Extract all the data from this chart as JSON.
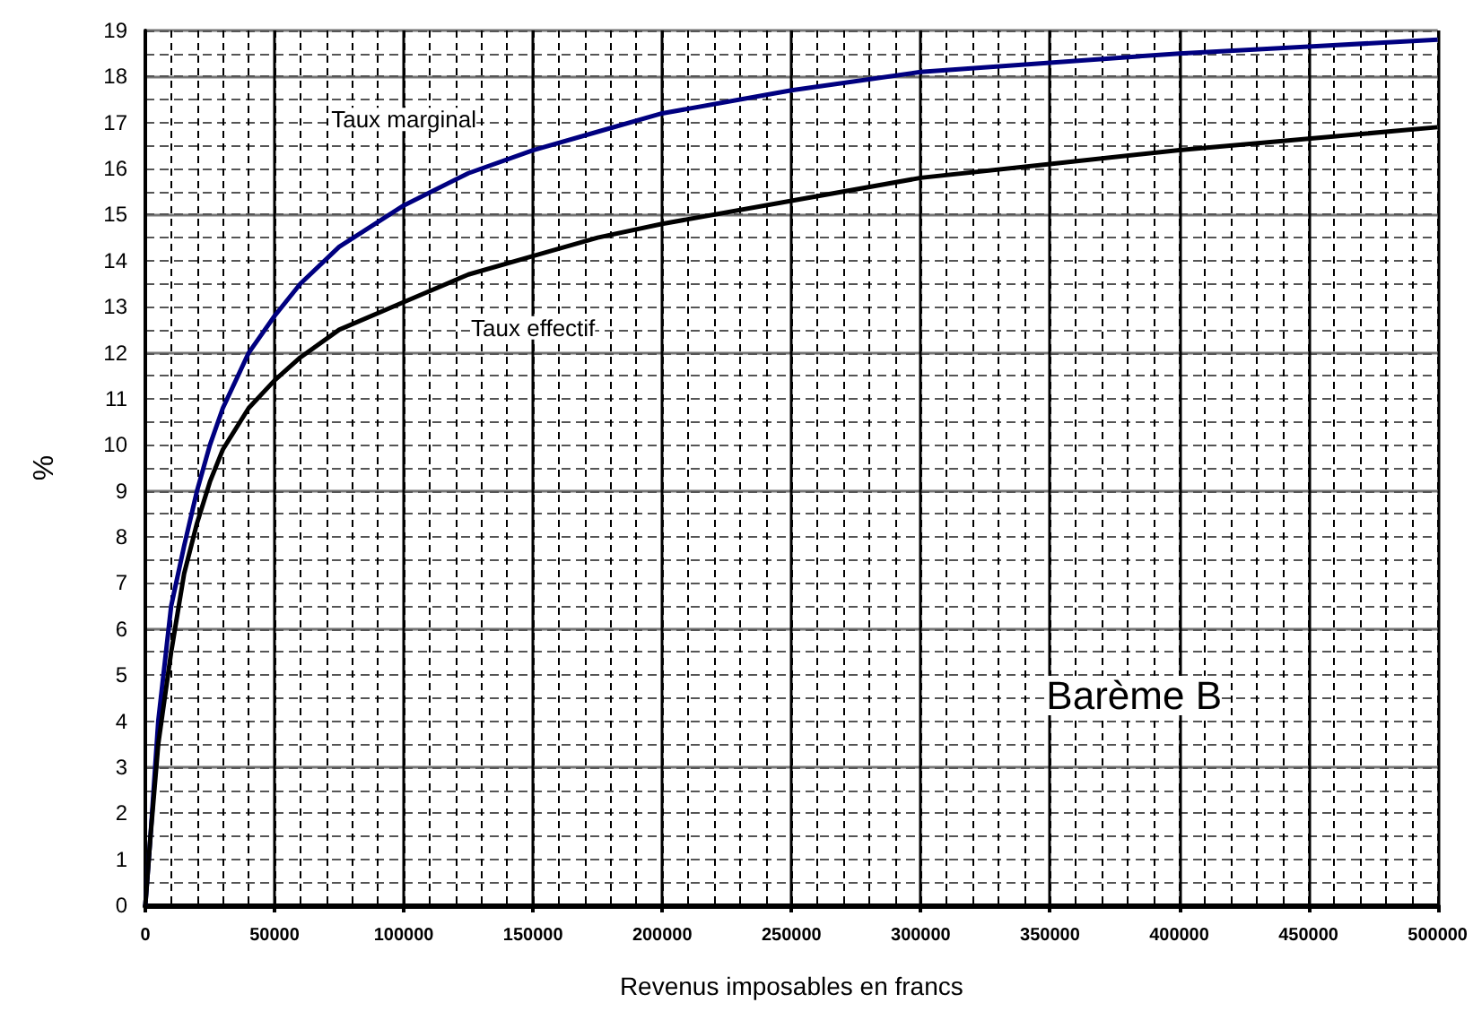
{
  "chart_data": {
    "type": "line",
    "xlabel": "Revenus imposables en francs",
    "ylabel": "%",
    "xlim": [
      0,
      500000
    ],
    "xticks": [
      0,
      50000,
      100000,
      150000,
      200000,
      250000,
      300000,
      350000,
      400000,
      450000,
      500000
    ],
    "ylim": [
      0,
      19
    ],
    "yticks": [
      0,
      1,
      2,
      3,
      4,
      5,
      6,
      7,
      8,
      9,
      10,
      11,
      12,
      13,
      14,
      15,
      16,
      17,
      18,
      19
    ],
    "grid": true,
    "legend": false,
    "marker": "none",
    "line_style": "solid",
    "annotations": [
      "Barème B"
    ],
    "series": [
      {
        "name": "Taux marginal",
        "color": "#000080",
        "x": [
          0,
          2000,
          5000,
          10000,
          15000,
          20000,
          25000,
          30000,
          40000,
          50000,
          60000,
          75000,
          100000,
          125000,
          150000,
          175000,
          200000,
          250000,
          300000,
          350000,
          400000,
          450000,
          500000
        ],
        "values": [
          0,
          1.5,
          4,
          6.5,
          7.8,
          9,
          10,
          10.8,
          12,
          12.8,
          13.5,
          14.3,
          15.2,
          15.9,
          16.4,
          16.8,
          17.2,
          17.7,
          18.1,
          18.3,
          18.5,
          18.65,
          18.8
        ]
      },
      {
        "name": "Taux effectif",
        "color": "#000000",
        "x": [
          0,
          2000,
          5000,
          10000,
          15000,
          20000,
          25000,
          30000,
          40000,
          50000,
          60000,
          75000,
          100000,
          125000,
          150000,
          175000,
          200000,
          250000,
          300000,
          350000,
          400000,
          450000,
          500000
        ],
        "values": [
          0,
          1.5,
          3.5,
          5.5,
          7.2,
          8.3,
          9.2,
          9.9,
          10.8,
          11.4,
          11.9,
          12.5,
          13.1,
          13.7,
          14.1,
          14.5,
          14.8,
          15.3,
          15.8,
          16.1,
          16.4,
          16.65,
          16.9
        ]
      }
    ]
  }
}
